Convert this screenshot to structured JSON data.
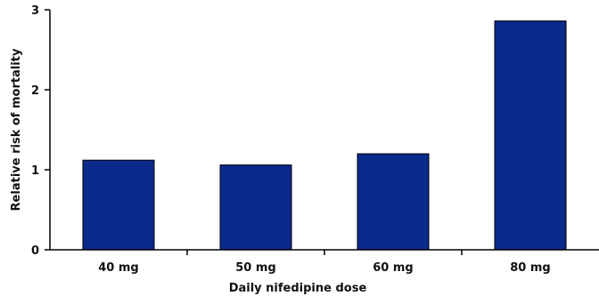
{
  "chart_data": {
    "type": "bar",
    "categories": [
      "40 mg",
      "50 mg",
      "60 mg",
      "80 mg"
    ],
    "values": [
      1.12,
      1.06,
      1.2,
      2.86
    ],
    "xlabel": "Daily nifedipine dose",
    "ylabel": "Relative risk of mortality",
    "ylim": [
      0,
      3
    ],
    "yticks": [
      "0",
      "1",
      "2",
      "3"
    ],
    "grid": false,
    "bar_color": "#0a2a8c"
  }
}
